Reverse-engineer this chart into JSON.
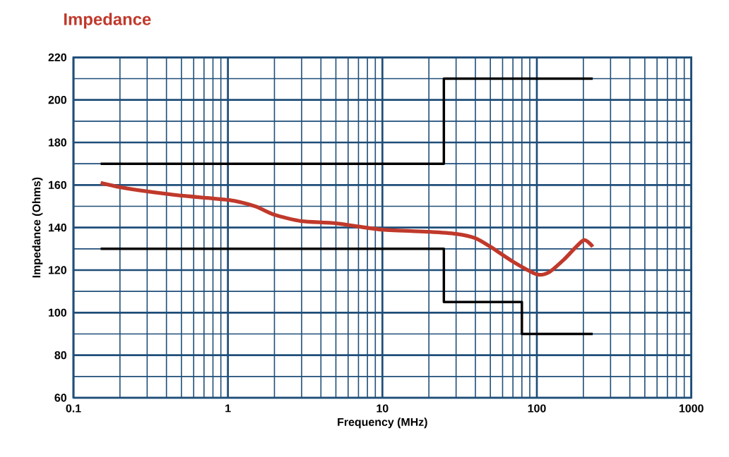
{
  "chart_data": {
    "type": "line",
    "title": "Impedance",
    "xlabel": "Frequency (MHz)",
    "ylabel": "Impedance (Ohms)",
    "log": "x",
    "xlim": [
      0.1,
      1000
    ],
    "xticks": [
      0.1,
      1,
      10,
      100,
      1000
    ],
    "ylim": [
      60,
      220
    ],
    "yticks": [
      60,
      80,
      100,
      120,
      140,
      160,
      180,
      200,
      220
    ],
    "grid": true,
    "series": [
      {
        "color": "#c0392b",
        "x": [
          0.15,
          0.2,
          0.3,
          0.5,
          1,
          1.5,
          2,
          3,
          5,
          10,
          20,
          30,
          40,
          50,
          70,
          100,
          120,
          150,
          200,
          230
        ],
        "values": [
          161,
          159,
          157,
          155,
          153,
          150,
          146,
          143,
          142,
          139,
          138,
          137,
          135,
          131,
          124,
          118,
          119,
          125,
          134,
          131
        ]
      },
      {
        "type": "step",
        "color": "#000000",
        "x": [
          0.15,
          25,
          230
        ],
        "values": [
          170,
          210,
          210
        ]
      },
      {
        "type": "step",
        "color": "#000000",
        "x": [
          0.15,
          25,
          80,
          230
        ],
        "values": [
          130,
          105,
          90,
          90
        ]
      }
    ]
  }
}
